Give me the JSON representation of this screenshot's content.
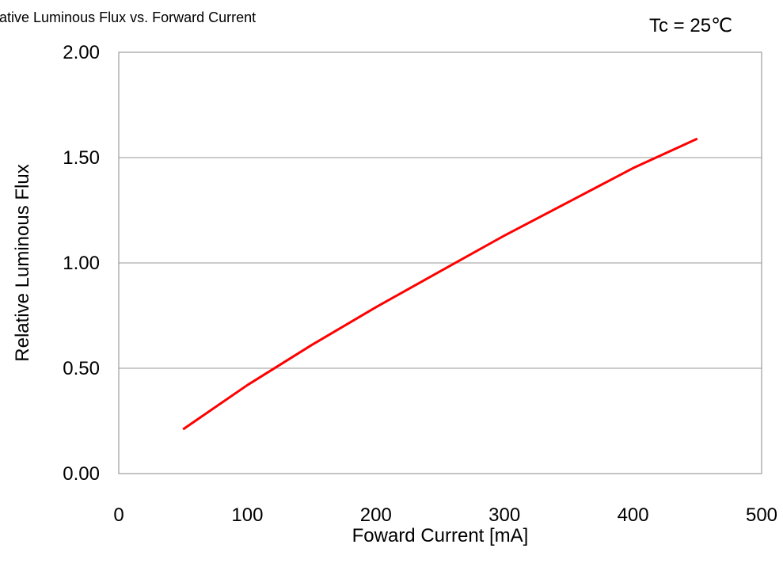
{
  "chart_data": {
    "type": "line",
    "title": "Relative Luminous Flux vs. Forward Current",
    "condition": "Tc = 25℃",
    "xlabel": "Foward Current [mA]",
    "ylabel": "Relative Luminous Flux",
    "xlim": [
      0,
      500
    ],
    "ylim": [
      0,
      2
    ],
    "x_ticks": [
      "0",
      "100",
      "200",
      "300",
      "400",
      "500"
    ],
    "y_ticks": [
      "0.00",
      "0.50",
      "1.00",
      "1.50",
      "2.00"
    ],
    "grid": "horizontal",
    "legend": "none",
    "series": [
      {
        "color": "#ff0000",
        "x": [
          50,
          100,
          150,
          200,
          250,
          300,
          350,
          400,
          450
        ],
        "y": [
          0.21,
          0.42,
          0.61,
          0.79,
          0.96,
          1.13,
          1.29,
          1.45,
          1.59
        ]
      }
    ]
  }
}
